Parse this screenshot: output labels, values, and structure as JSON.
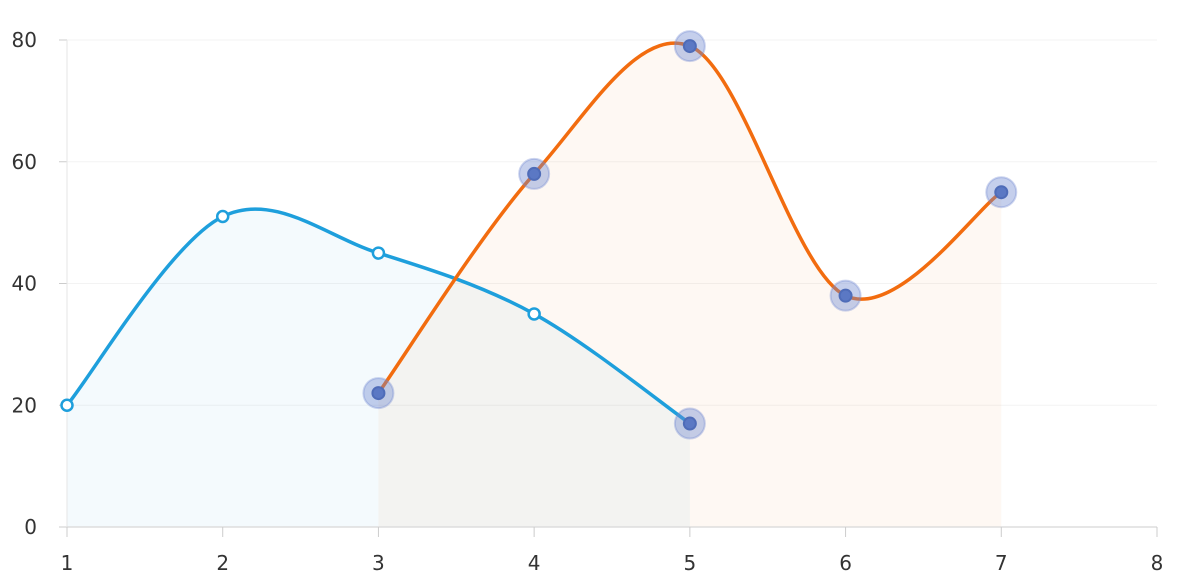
{
  "chart_data": {
    "type": "area",
    "title": "",
    "xlabel": "",
    "ylabel": "",
    "xlim": [
      1,
      8
    ],
    "ylim": [
      0,
      80
    ],
    "x_ticks": [
      1,
      2,
      3,
      4,
      5,
      6,
      7,
      8
    ],
    "y_ticks": [
      0,
      20,
      40,
      60,
      80
    ],
    "grid": true,
    "legend": "none",
    "series": [
      {
        "color": "#1e9fdc",
        "points": [
          {
            "x": 1,
            "y": 20,
            "highlight": false
          },
          {
            "x": 2,
            "y": 51,
            "highlight": false
          },
          {
            "x": 3,
            "y": 45,
            "highlight": false
          },
          {
            "x": 4,
            "y": 35,
            "highlight": false
          },
          {
            "x": 5,
            "y": 17,
            "highlight": true
          }
        ]
      },
      {
        "color": "#f26c0f",
        "points": [
          {
            "x": 3,
            "y": 22,
            "highlight": true
          },
          {
            "x": 4,
            "y": 58,
            "highlight": true
          },
          {
            "x": 5,
            "y": 79,
            "highlight": true
          },
          {
            "x": 6,
            "y": 38,
            "highlight": true
          },
          {
            "x": 7,
            "y": 55,
            "highlight": true
          }
        ]
      }
    ]
  }
}
